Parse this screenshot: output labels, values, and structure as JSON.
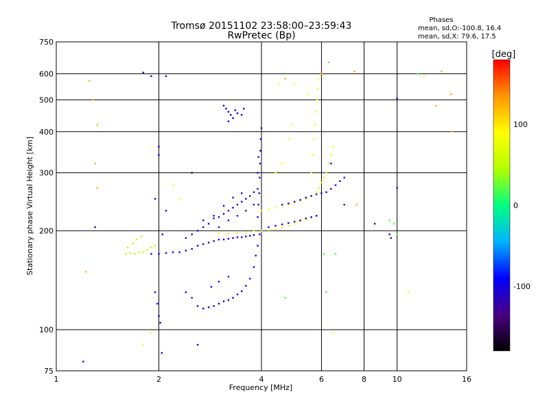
{
  "chart_data": {
    "type": "scatter",
    "title": "Tromsø 20151102 23:58:00–23:59:43",
    "subtitle": "RwPretec (Bp)",
    "xlabel": "Frequency [MHz]",
    "ylabel": "Stationary phase Virtual Height [km]",
    "x_scale": "log",
    "y_scale": "log",
    "xlim": [
      1,
      16
    ],
    "ylim": [
      75,
      750
    ],
    "x_ticks": [
      1,
      2,
      4,
      6,
      8,
      10,
      16
    ],
    "x_tick_labels": [
      "1",
      "2",
      "4",
      "6",
      "8",
      "10",
      "16"
    ],
    "y_ticks": [
      75,
      100,
      200,
      300,
      400,
      500,
      600,
      750
    ],
    "y_tick_labels": [
      "75",
      "100",
      "200",
      "300",
      "400",
      "500",
      "600",
      "750"
    ],
    "grid": true,
    "info_box": {
      "heading": "Phases",
      "line1": "mean, sd,O:-100.8, 16.4",
      "line2": "mean, sd,X:  79.6, 17.5"
    },
    "colorbar": {
      "label": "[deg]",
      "range": [
        -180,
        180
      ],
      "ticks": [
        100,
        0,
        -100
      ],
      "tick_labels": [
        "100",
        "0",
        "-100"
      ],
      "colors": [
        "#000000",
        "#4b0082",
        "#0000ff",
        "#00b4ff",
        "#00ff80",
        "#b4ff00",
        "#ffff00",
        "#ff9600",
        "#ff0000"
      ]
    },
    "series": [
      {
        "trace": "low-E-layer-green",
        "phase": 50,
        "points": [
          [
            1.6,
            170
          ],
          [
            1.65,
            171
          ],
          [
            1.7,
            170
          ],
          [
            1.75,
            172
          ],
          [
            1.8,
            172
          ],
          [
            1.85,
            175
          ],
          [
            1.9,
            178
          ],
          [
            1.95,
            180
          ],
          [
            1.62,
            178
          ],
          [
            1.68,
            183
          ],
          [
            1.72,
            188
          ],
          [
            1.78,
            192
          ]
        ]
      },
      {
        "trace": "o-trace-blue-base",
        "phase": -100,
        "points": [
          [
            1.9,
            170
          ],
          [
            2.0,
            170
          ],
          [
            2.1,
            171
          ],
          [
            2.2,
            172
          ],
          [
            2.3,
            172
          ],
          [
            2.4,
            174
          ],
          [
            2.5,
            176
          ],
          [
            2.6,
            180
          ],
          [
            2.7,
            182
          ],
          [
            2.8,
            184
          ],
          [
            2.9,
            186
          ],
          [
            3.0,
            188
          ],
          [
            3.1,
            188
          ],
          [
            3.2,
            189
          ],
          [
            3.3,
            190
          ],
          [
            3.4,
            191
          ],
          [
            3.5,
            191
          ],
          [
            3.6,
            192
          ],
          [
            3.7,
            193
          ],
          [
            3.8,
            194
          ]
        ]
      },
      {
        "trace": "o-trace-blue-dense",
        "phase": -110,
        "points": [
          [
            2.4,
            190
          ],
          [
            2.5,
            195
          ],
          [
            2.6,
            200
          ],
          [
            2.7,
            205
          ],
          [
            2.8,
            210
          ],
          [
            2.9,
            218
          ],
          [
            3.0,
            220
          ],
          [
            3.1,
            225
          ],
          [
            3.2,
            230
          ],
          [
            3.3,
            235
          ],
          [
            3.4,
            240
          ],
          [
            3.5,
            245
          ],
          [
            3.6,
            250
          ],
          [
            3.7,
            255
          ],
          [
            3.8,
            262
          ],
          [
            3.9,
            268
          ],
          [
            3.0,
            205
          ],
          [
            3.2,
            215
          ],
          [
            3.4,
            222
          ],
          [
            3.6,
            230
          ],
          [
            3.8,
            240
          ],
          [
            2.7,
            215
          ],
          [
            2.9,
            222
          ],
          [
            3.1,
            238
          ],
          [
            3.3,
            252
          ],
          [
            3.5,
            260
          ]
        ]
      },
      {
        "trace": "o-trace-cusp-blue",
        "phase": -100,
        "points": [
          [
            2.6,
            118
          ],
          [
            2.7,
            116
          ],
          [
            2.8,
            117
          ],
          [
            2.9,
            118
          ],
          [
            3.0,
            120
          ],
          [
            3.1,
            122
          ],
          [
            3.2,
            123
          ],
          [
            3.3,
            125
          ],
          [
            3.4,
            128
          ],
          [
            3.5,
            131
          ],
          [
            3.6,
            136
          ],
          [
            3.7,
            143
          ],
          [
            3.8,
            155
          ],
          [
            3.85,
            168
          ],
          [
            3.9,
            180
          ],
          [
            3.95,
            195
          ],
          [
            2.5,
            125
          ],
          [
            2.4,
            130
          ],
          [
            2.85,
            135
          ],
          [
            3.0,
            140
          ],
          [
            3.2,
            145
          ]
        ]
      },
      {
        "trace": "f-vertical-blue",
        "phase": -105,
        "points": [
          [
            3.9,
            220
          ],
          [
            3.92,
            240
          ],
          [
            3.94,
            260
          ],
          [
            3.95,
            290
          ],
          [
            3.96,
            320
          ],
          [
            3.97,
            350
          ],
          [
            3.98,
            380
          ],
          [
            4.0,
            410
          ],
          [
            3.9,
            300
          ],
          [
            3.92,
            335
          ]
        ]
      },
      {
        "trace": "f-upper-blue",
        "phase": -95,
        "points": [
          [
            3.1,
            480
          ],
          [
            3.15,
            470
          ],
          [
            3.2,
            460
          ],
          [
            3.25,
            450
          ],
          [
            3.3,
            440
          ],
          [
            3.35,
            465
          ],
          [
            3.4,
            455
          ],
          [
            3.5,
            450
          ],
          [
            3.55,
            470
          ],
          [
            3.2,
            430
          ]
        ]
      },
      {
        "trace": "x-trace-yellow",
        "phase": 80,
        "points": [
          [
            3.0,
            196
          ],
          [
            3.2,
            196
          ],
          [
            3.4,
            197
          ],
          [
            3.6,
            198
          ],
          [
            3.8,
            200
          ],
          [
            4.0,
            200
          ],
          [
            4.2,
            201
          ],
          [
            4.4,
            202
          ],
          [
            4.6,
            205
          ],
          [
            4.8,
            207
          ],
          [
            5.0,
            210
          ],
          [
            5.2,
            213
          ],
          [
            5.4,
            216
          ],
          [
            5.6,
            218
          ],
          [
            5.8,
            222
          ]
        ]
      },
      {
        "trace": "x-trace-yellow-upper",
        "phase": 75,
        "points": [
          [
            4.0,
            230
          ],
          [
            4.2,
            232
          ],
          [
            4.4,
            235
          ],
          [
            4.6,
            238
          ],
          [
            4.8,
            240
          ],
          [
            5.0,
            244
          ],
          [
            5.2,
            247
          ],
          [
            5.4,
            250
          ],
          [
            5.6,
            255
          ],
          [
            5.8,
            262
          ],
          [
            5.9,
            270
          ],
          [
            6.0,
            280
          ],
          [
            6.1,
            290
          ],
          [
            6.2,
            300
          ],
          [
            6.3,
            320
          ],
          [
            6.4,
            340
          ],
          [
            6.5,
            360
          ]
        ]
      },
      {
        "trace": "x-vertical-yellow",
        "phase": 85,
        "points": [
          [
            5.6,
            300
          ],
          [
            5.65,
            340
          ],
          [
            5.7,
            380
          ],
          [
            5.75,
            420
          ],
          [
            5.8,
            460
          ],
          [
            5.82,
            500
          ],
          [
            5.84,
            540
          ],
          [
            5.86,
            575
          ],
          [
            4.4,
            300
          ],
          [
            4.6,
            320
          ],
          [
            4.8,
            380
          ],
          [
            4.9,
            420
          ]
        ]
      },
      {
        "trace": "o-trace-blue-upper",
        "phase": -110,
        "points": [
          [
            4.6,
            240
          ],
          [
            4.8,
            242
          ],
          [
            5.0,
            245
          ],
          [
            5.2,
            248
          ],
          [
            5.4,
            252
          ],
          [
            5.6,
            255
          ],
          [
            5.8,
            258
          ],
          [
            6.0,
            260
          ],
          [
            6.2,
            262
          ],
          [
            6.4,
            268
          ],
          [
            6.6,
            275
          ],
          [
            6.8,
            283
          ],
          [
            7.0,
            290
          ]
        ]
      },
      {
        "trace": "o-trace-blue-lower-x",
        "phase": -95,
        "points": [
          [
            4.2,
            205
          ],
          [
            4.4,
            207
          ],
          [
            4.6,
            209
          ],
          [
            4.8,
            211
          ],
          [
            5.0,
            213
          ],
          [
            5.2,
            215
          ],
          [
            5.4,
            218
          ],
          [
            5.6,
            220
          ],
          [
            5.8,
            222
          ]
        ]
      },
      {
        "trace": "vertical-blue-2mhz",
        "phase": -100,
        "points": [
          [
            1.95,
            130
          ],
          [
            1.98,
            120
          ],
          [
            2.0,
            110
          ],
          [
            2.02,
            105
          ],
          [
            2.04,
            85
          ],
          [
            2.0,
            360
          ],
          [
            2.0,
            340
          ],
          [
            1.95,
            250
          ],
          [
            2.1,
            230
          ],
          [
            2.05,
            195
          ]
        ]
      },
      {
        "trace": "scattered-orange",
        "phase": 120,
        "points": [
          [
            1.25,
            570
          ],
          [
            1.28,
            500
          ],
          [
            1.32,
            420
          ],
          [
            1.3,
            320
          ],
          [
            1.32,
            270
          ],
          [
            1.22,
            150
          ],
          [
            7.5,
            610
          ],
          [
            7.6,
            240
          ],
          [
            13.5,
            610
          ],
          [
            14.5,
            400
          ],
          [
            14.4,
            520
          ],
          [
            4.7,
            580
          ],
          [
            6.0,
            600
          ],
          [
            13.0,
            480
          ]
        ]
      },
      {
        "trace": "scattered-green",
        "phase": 20,
        "points": [
          [
            6.3,
            650
          ],
          [
            6.2,
            130
          ],
          [
            6.6,
            170
          ],
          [
            6.1,
            170
          ],
          [
            9.5,
            215
          ],
          [
            9.8,
            210
          ],
          [
            10.0,
            195
          ],
          [
            4.7,
            125
          ],
          [
            11.5,
            600
          ]
        ]
      },
      {
        "trace": "scattered-blue",
        "phase": -110,
        "points": [
          [
            1.2,
            80
          ],
          [
            1.3,
            205
          ],
          [
            1.8,
            605
          ],
          [
            1.9,
            590
          ],
          [
            2.1,
            590
          ],
          [
            2.5,
            300
          ],
          [
            2.6,
            90
          ],
          [
            9.5,
            195
          ],
          [
            9.6,
            190
          ],
          [
            10.0,
            505
          ],
          [
            10.0,
            270
          ],
          [
            6.4,
            320
          ],
          [
            7.0,
            240
          ],
          [
            8.6,
            210
          ]
        ]
      },
      {
        "trace": "scattered-yellow",
        "phase": 90,
        "points": [
          [
            1.9,
            98
          ],
          [
            1.8,
            90
          ],
          [
            2.3,
            250
          ],
          [
            2.2,
            275
          ],
          [
            6.5,
            98
          ],
          [
            10.8,
            130
          ],
          [
            12.0,
            590
          ],
          [
            4.5,
            560
          ],
          [
            5.0,
            560
          ],
          [
            5.5,
            520
          ]
        ]
      }
    ]
  }
}
